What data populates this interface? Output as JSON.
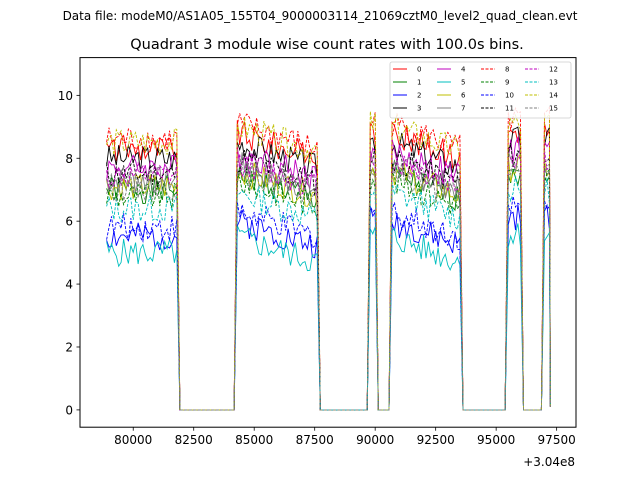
{
  "figure": {
    "suptitle": "Data file: modeM0/AS1A05_155T04_9000003114_21069cztM0_level2_quad_clean.evt"
  },
  "chart_data": {
    "type": "line",
    "title": "Quadrant 3 module wise count rates with 100.0s bins.",
    "xlabel": "",
    "ylabel": "",
    "x_offset_label": "+3.04e8",
    "xlim": [
      77800,
      98300
    ],
    "ylim": [
      -0.55,
      11.2
    ],
    "xticks": [
      80000,
      82500,
      85000,
      87500,
      90000,
      92500,
      95000,
      97500
    ],
    "xtick_labels": [
      "80000",
      "82500",
      "85000",
      "87500",
      "90000",
      "92500",
      "95000",
      "97500"
    ],
    "yticks": [
      0,
      2,
      4,
      6,
      8,
      10
    ],
    "ytick_labels": [
      "0",
      "2",
      "4",
      "6",
      "8",
      "10"
    ],
    "grid": false,
    "legend_position": "top-right",
    "segments": [
      {
        "start": 78900,
        "end": 81800
      },
      {
        "start": 84300,
        "end": 87600
      },
      {
        "start": 89800,
        "end": 90000
      },
      {
        "start": 90700,
        "end": 93500
      },
      {
        "start": 95500,
        "end": 96000
      },
      {
        "start": 97000,
        "end": 97200
      }
    ],
    "series": [
      {
        "name": "0",
        "color": "#ff0000",
        "dash": false,
        "level": 8.3
      },
      {
        "name": "1",
        "color": "#008000",
        "dash": false,
        "level": 7.0
      },
      {
        "name": "2",
        "color": "#0000ff",
        "dash": false,
        "level": 5.5
      },
      {
        "name": "3",
        "color": "#000000",
        "dash": false,
        "level": 8.0
      },
      {
        "name": "4",
        "color": "#bf00bf",
        "dash": false,
        "level": 7.7
      },
      {
        "name": "5",
        "color": "#00bfbf",
        "dash": false,
        "level": 5.0
      },
      {
        "name": "6",
        "color": "#bfbf00",
        "dash": false,
        "level": 7.1
      },
      {
        "name": "7",
        "color": "#808080",
        "dash": false,
        "level": 7.3
      },
      {
        "name": "8",
        "color": "#ff0000",
        "dash": true,
        "level": 8.6
      },
      {
        "name": "9",
        "color": "#008000",
        "dash": true,
        "level": 6.8
      },
      {
        "name": "10",
        "color": "#0000ff",
        "dash": true,
        "level": 5.8
      },
      {
        "name": "11",
        "color": "#000000",
        "dash": true,
        "level": 7.5
      },
      {
        "name": "12",
        "color": "#bf00bf",
        "dash": true,
        "level": 7.4
      },
      {
        "name": "13",
        "color": "#00bfbf",
        "dash": true,
        "level": 6.4
      },
      {
        "name": "14",
        "color": "#bfbf00",
        "dash": true,
        "level": 8.5
      },
      {
        "name": "15",
        "color": "#808080",
        "dash": true,
        "level": 7.1
      }
    ]
  }
}
